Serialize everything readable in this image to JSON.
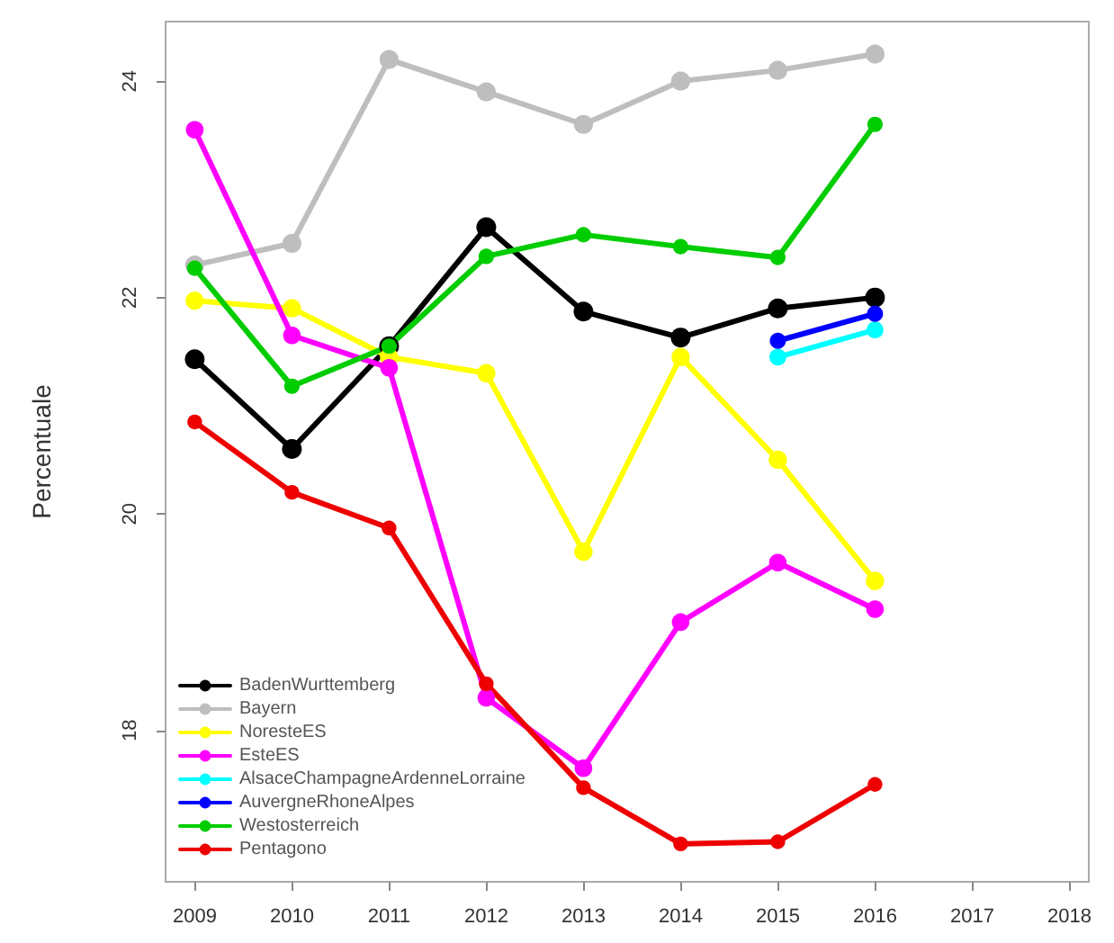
{
  "chart_data": {
    "type": "line",
    "ylabel": "Percentuale",
    "x": [
      2009,
      2010,
      2011,
      2012,
      2013,
      2014,
      2015,
      2016
    ],
    "xlim": [
      2008.7,
      2018.2
    ],
    "xticks": [
      2009,
      2010,
      2011,
      2012,
      2013,
      2014,
      2015,
      2016,
      2017,
      2018
    ],
    "ylim": [
      16.6,
      24.55
    ],
    "yticks": [
      18,
      20,
      22,
      24
    ],
    "grid": false,
    "legend": "bottom left",
    "marker": "circle",
    "line_style": "solid",
    "series": [
      {
        "name": "BadenWurttemberg",
        "color": "#000000",
        "values": [
          21.43,
          20.6,
          21.55,
          22.65,
          21.87,
          21.63,
          21.9,
          22.0
        ]
      },
      {
        "name": "Bayern",
        "color": "#bebebe",
        "values": [
          22.3,
          22.5,
          24.2,
          23.9,
          23.6,
          24.0,
          24.1,
          24.25
        ]
      },
      {
        "name": "NoresteES",
        "color": "#ffff00",
        "values": [
          21.97,
          21.9,
          21.45,
          21.3,
          19.65,
          21.45,
          20.5,
          19.38
        ]
      },
      {
        "name": "EsteES",
        "color": "#ff00ff",
        "values": [
          23.55,
          21.65,
          21.35,
          18.3,
          17.65,
          19.0,
          19.55,
          19.12
        ]
      },
      {
        "name": "AlsaceChampagneArdenneLorraine",
        "color": "#00ffff",
        "values": [
          null,
          null,
          null,
          null,
          null,
          null,
          21.45,
          21.7
        ]
      },
      {
        "name": "AuvergneRhoneAlpes",
        "color": "#0000ff",
        "values": [
          null,
          null,
          null,
          null,
          null,
          null,
          21.6,
          21.85
        ]
      },
      {
        "name": "Westosterreich",
        "color": "#00cd00",
        "values": [
          22.27,
          21.18,
          21.55,
          22.38,
          22.58,
          22.47,
          22.37,
          23.6
        ]
      },
      {
        "name": "Pentagono",
        "color": "#ee0000",
        "values": [
          20.85,
          20.2,
          19.87,
          18.43,
          17.47,
          16.95,
          16.97,
          17.5
        ]
      }
    ]
  }
}
